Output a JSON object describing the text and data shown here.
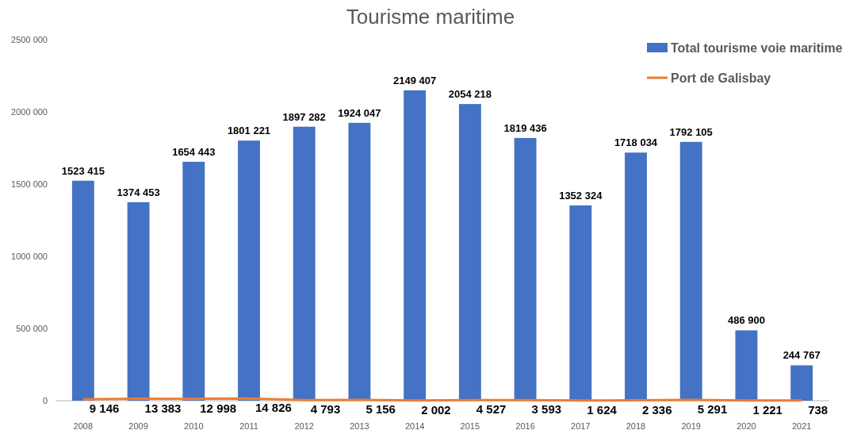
{
  "chart_data": {
    "type": "bar",
    "title": "Tourisme maritime",
    "categories": [
      "2008",
      "2009",
      "2010",
      "2011",
      "2012",
      "2013",
      "2014",
      "2015",
      "2016",
      "2017",
      "2018",
      "2019",
      "2020",
      "2021"
    ],
    "series": [
      {
        "name": "Total tourisme voie maritime",
        "color": "#4472c4",
        "values": [
          1523415,
          1374453,
          1654443,
          1801221,
          1897282,
          1924047,
          2149407,
          2054218,
          1819436,
          1352324,
          1718034,
          1792105,
          486900,
          244767
        ],
        "value_labels": [
          "1523 415",
          "1374 453",
          "1654 443",
          "1801 221",
          "1897 282",
          "1924 047",
          "2149 407",
          "2054 218",
          "1819 436",
          "1352 324",
          "1718 034",
          "1792 105",
          "486 900",
          "244 767"
        ]
      },
      {
        "name": "Port de Galisbay",
        "type": "line",
        "color": "#ed7d31",
        "values": [
          9146,
          13383,
          12998,
          14826,
          4793,
          5156,
          2002,
          4527,
          3593,
          1624,
          2336,
          5291,
          1221,
          738
        ],
        "value_labels": [
          "9 146",
          "13 383",
          "12 998",
          "14 826",
          "4 793",
          "5 156",
          "2 002",
          "4 527",
          "3 593",
          "1 624",
          "2 336",
          "5 291",
          "1 221",
          "738"
        ]
      }
    ],
    "ylim": [
      0,
      2500000
    ],
    "yticks": [
      {
        "value": 0,
        "label": "0"
      },
      {
        "value": 500000,
        "label": "500 000"
      },
      {
        "value": 1000000,
        "label": "1000 000"
      },
      {
        "value": 1500000,
        "label": "1500 000"
      },
      {
        "value": 2000000,
        "label": "2000 000"
      },
      {
        "value": 2500000,
        "label": "2500 000"
      }
    ],
    "grid": false,
    "legend": "top right",
    "marker": "none",
    "line_style": "solid"
  }
}
